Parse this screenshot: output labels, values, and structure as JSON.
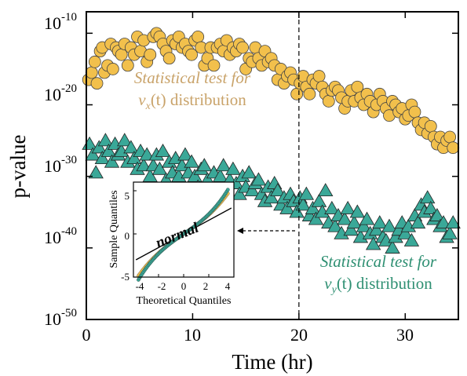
{
  "chart_data": [
    {
      "type": "scatter",
      "xlabel": "Time (hr)",
      "ylabel": "p-value",
      "xlim": [
        0,
        35
      ],
      "ylim_exponent": [
        -50,
        -7
      ],
      "yscale": "log",
      "x_ticks": [
        "0",
        "10",
        "20",
        "30"
      ],
      "y_ticks": [
        {
          "base": "10",
          "exp": "-10"
        },
        {
          "base": "10",
          "exp": "-20"
        },
        {
          "base": "10",
          "exp": "-30"
        },
        {
          "base": "10",
          "exp": "-40"
        },
        {
          "base": "10",
          "exp": "-50"
        }
      ],
      "grid": false,
      "vline_x": 20,
      "colors": {
        "vx": "#f2c04c",
        "vx_text": "#c9a36a",
        "vy": "#3aa898",
        "vy_text": "#2e8f72"
      },
      "annotations": {
        "vx_line1": "Statistical test for",
        "vx_line2_var": "v",
        "vx_line2_sub": "x",
        "vx_line2_rest": "(t) distribution",
        "vy_line1": "Statistical test for",
        "vy_line2_var": "v",
        "vy_line2_sub": "y",
        "vy_line2_rest": "(t) distribution"
      },
      "series": [
        {
          "marker": "circle",
          "x": [
            0.2,
            0.5,
            0.8,
            1.0,
            1.3,
            1.5,
            1.7,
            2.0,
            2.3,
            2.5,
            2.8,
            3.0,
            3.3,
            3.6,
            3.9,
            4.2,
            4.5,
            4.8,
            5.1,
            5.4,
            5.7,
            6.0,
            6.3,
            6.6,
            6.9,
            7.2,
            7.5,
            7.8,
            8.1,
            8.4,
            8.7,
            9.0,
            9.3,
            9.6,
            9.9,
            10.2,
            10.5,
            10.8,
            11.1,
            11.4,
            11.7,
            12.0,
            12.3,
            12.6,
            12.9,
            13.2,
            13.5,
            13.8,
            14.1,
            14.4,
            14.7,
            15.0,
            15.3,
            15.6,
            15.9,
            16.2,
            16.5,
            16.8,
            17.1,
            17.4,
            17.7,
            18.0,
            18.3,
            18.6,
            18.9,
            19.2,
            19.5,
            19.8,
            20.1,
            20.4,
            20.7,
            21.0,
            21.3,
            21.6,
            21.9,
            22.2,
            22.5,
            22.8,
            23.1,
            23.4,
            23.7,
            24.0,
            24.3,
            24.6,
            24.9,
            25.2,
            25.5,
            25.8,
            26.1,
            26.4,
            26.7,
            27.0,
            27.3,
            27.6,
            27.9,
            28.2,
            28.5,
            28.8,
            29.1,
            29.4,
            29.7,
            30.0,
            30.3,
            30.6,
            30.9,
            31.2,
            31.5,
            31.8,
            32.1,
            32.4,
            32.7,
            33.0,
            33.3,
            33.6,
            33.9,
            34.2,
            34.5
          ],
          "exp": [
            -16.5,
            -15.5,
            -14.0,
            -17.0,
            -12.5,
            -12.0,
            -15.5,
            -14.5,
            -11.5,
            -15.0,
            -12.0,
            -12.5,
            -13.0,
            -11.5,
            -14.5,
            -12.0,
            -13.0,
            -10.5,
            -12.5,
            -11.0,
            -14.0,
            -13.0,
            -10.5,
            -10.0,
            -10.5,
            -11.5,
            -12.5,
            -13.5,
            -11.0,
            -11.5,
            -10.5,
            -12.0,
            -11.5,
            -12.5,
            -13.0,
            -11.0,
            -10.5,
            -12.0,
            -14.5,
            -13.5,
            -12.0,
            -14.5,
            -12.0,
            -11.5,
            -12.5,
            -11.0,
            -13.0,
            -12.0,
            -12.5,
            -11.5,
            -12.0,
            -15.0,
            -13.5,
            -14.0,
            -12.0,
            -13.5,
            -14.5,
            -12.5,
            -14.0,
            -13.5,
            -14.5,
            -16.5,
            -15.0,
            -17.0,
            -16.0,
            -15.5,
            -16.5,
            -18.5,
            -17.0,
            -16.0,
            -17.5,
            -18.5,
            -16.5,
            -17.0,
            -16.0,
            -17.5,
            -18.5,
            -19.5,
            -18.0,
            -17.5,
            -18.0,
            -19.0,
            -20.5,
            -19.5,
            -18.0,
            -19.5,
            -17.5,
            -19.0,
            -20.0,
            -18.5,
            -19.5,
            -21.0,
            -20.0,
            -18.5,
            -19.5,
            -20.5,
            -21.5,
            -19.5,
            -20.0,
            -21.0,
            -20.5,
            -22.0,
            -21.5,
            -20.0,
            -21.0,
            -22.5,
            -23.5,
            -22.5,
            -24.0,
            -23.0,
            -24.5,
            -25.5,
            -24.5,
            -26.0,
            -25.0,
            -24.5,
            -26.0
          ],
          "color": "#f2c04c"
        },
        {
          "marker": "triangle",
          "x": [
            0.3,
            0.6,
            0.9,
            1.2,
            1.5,
            1.8,
            2.1,
            2.4,
            2.7,
            3.0,
            3.3,
            3.6,
            3.9,
            4.2,
            4.5,
            4.8,
            5.1,
            5.4,
            5.7,
            6.0,
            6.3,
            6.6,
            6.9,
            7.2,
            7.5,
            7.8,
            8.1,
            8.4,
            8.7,
            9.0,
            9.3,
            9.6,
            9.9,
            10.2,
            10.5,
            10.8,
            11.1,
            11.4,
            11.7,
            12.0,
            12.3,
            12.6,
            12.9,
            13.2,
            13.5,
            13.8,
            14.1,
            14.4,
            14.7,
            15.0,
            15.3,
            15.6,
            15.9,
            16.2,
            16.5,
            16.8,
            17.1,
            17.4,
            17.7,
            18.0,
            18.3,
            18.6,
            18.9,
            19.2,
            19.5,
            19.8,
            20.1,
            20.4,
            20.7,
            21.0,
            21.3,
            21.6,
            21.9,
            22.2,
            22.5,
            22.8,
            23.1,
            23.4,
            23.7,
            24.0,
            24.3,
            24.6,
            24.9,
            25.2,
            25.5,
            25.8,
            26.1,
            26.4,
            26.7,
            27.0,
            27.3,
            27.6,
            27.9,
            28.2,
            28.5,
            28.8,
            29.1,
            29.4,
            29.7,
            30.0,
            30.3,
            30.6,
            30.9,
            31.2,
            31.5,
            31.8,
            32.1,
            32.4,
            32.7,
            33.0,
            33.3,
            33.6,
            33.9,
            34.2,
            34.5
          ],
          "exp": [
            -25.5,
            -27.0,
            -29.5,
            -26.0,
            -27.5,
            -25.0,
            -26.5,
            -28.0,
            -25.5,
            -27.0,
            -26.5,
            -25.0,
            -28.0,
            -26.0,
            -27.5,
            -29.0,
            -26.5,
            -28.5,
            -27.0,
            -30.0,
            -28.5,
            -27.0,
            -29.0,
            -26.5,
            -30.5,
            -28.0,
            -29.5,
            -27.5,
            -30.0,
            -28.5,
            -27.0,
            -29.5,
            -28.0,
            -30.0,
            -31.5,
            -29.0,
            -28.5,
            -30.5,
            -32.0,
            -29.5,
            -31.0,
            -30.0,
            -28.5,
            -31.5,
            -30.5,
            -29.0,
            -31.0,
            -32.5,
            -30.0,
            -31.5,
            -29.5,
            -32.0,
            -31.0,
            -30.5,
            -32.5,
            -33.5,
            -31.5,
            -33.0,
            -31.0,
            -32.0,
            -34.0,
            -33.0,
            -34.5,
            -32.5,
            -33.5,
            -35.0,
            -33.0,
            -34.0,
            -32.5,
            -35.5,
            -34.5,
            -36.0,
            -33.5,
            -35.0,
            -32.0,
            -36.5,
            -34.5,
            -37.0,
            -35.5,
            -38.0,
            -36.0,
            -34.5,
            -37.5,
            -36.5,
            -35.0,
            -38.5,
            -37.0,
            -36.0,
            -38.0,
            -39.5,
            -37.5,
            -36.5,
            -38.5,
            -39.0,
            -37.0,
            -40.0,
            -38.5,
            -37.5,
            -36.5,
            -38.0,
            -37.0,
            -39.0,
            -35.5,
            -36.5,
            -34.0,
            -35.0,
            -33.0,
            -34.5,
            -36.0,
            -35.5,
            -37.0,
            -36.5,
            -38.5,
            -38.0,
            -36.5
          ],
          "color": "#3aa898"
        }
      ]
    },
    {
      "type": "scatter",
      "xlabel": "Theoretical Quantiles",
      "ylabel": "Sample Quantiles",
      "xlim": [
        -4,
        4
      ],
      "ylim": [
        -5,
        6
      ],
      "x_ticks": [
        "-4",
        "-2",
        "0",
        "2",
        "4"
      ],
      "y_ticks": [
        "5",
        "0",
        "-5"
      ],
      "grid": false,
      "annotation": "normal",
      "reference_line": {
        "x": [
          -3.8,
          3.8
        ],
        "y": [
          -3.0,
          3.0
        ]
      },
      "qq_vx_color": "#f2c04c",
      "qq_vy_color": "#3aa898"
    }
  ]
}
